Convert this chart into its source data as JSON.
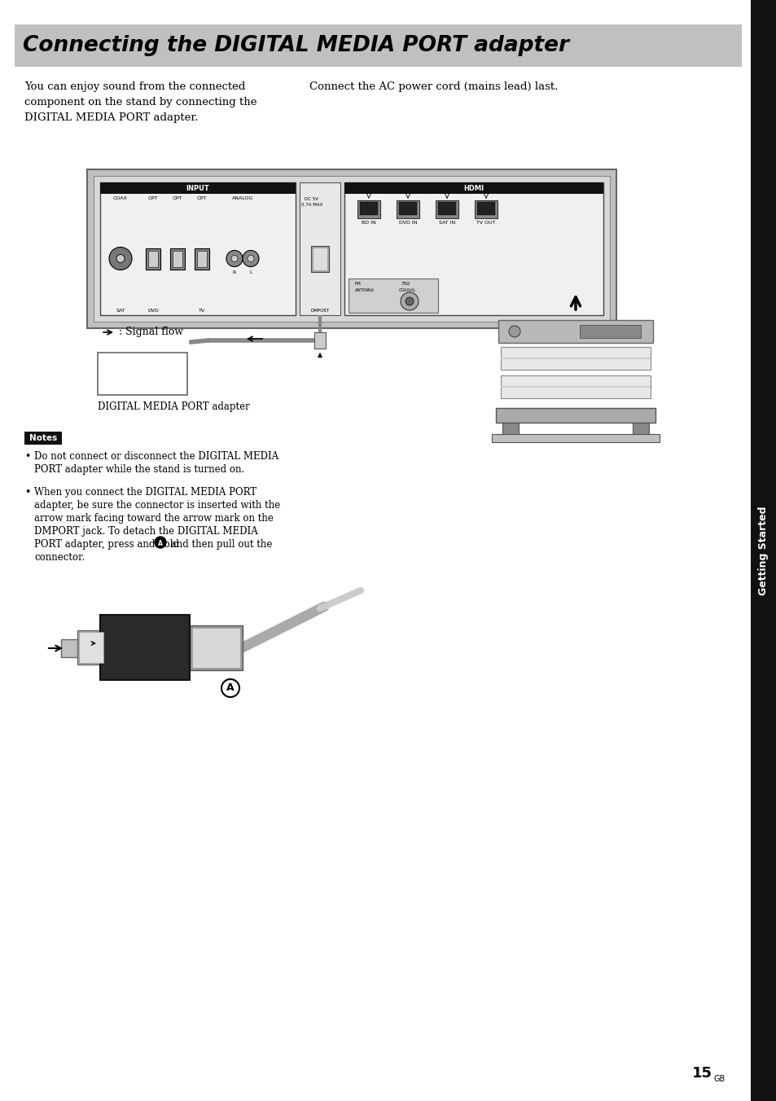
{
  "title": "Connecting the DIGITAL MEDIA PORT adapter",
  "title_bg": "#c0c0c0",
  "title_color": "#000000",
  "page_bg": "#ffffff",
  "sidebar_bg": "#111111",
  "sidebar_text": "Getting Started",
  "body_text_left": "You can enjoy sound from the connected\ncomponent on the stand by connecting the\nDIGITAL MEDIA PORT adapter.",
  "body_text_right": "Connect the AC power cord (mains lead) last.",
  "signal_flow_label": ": Signal flow",
  "dmport_label": "DIGITAL MEDIA PORT adapter",
  "notes_title": "Notes",
  "note1_line1": "Do not connect or disconnect the DIGITAL MEDIA",
  "note1_line2": "PORT adapter while the stand is turned on.",
  "note2_line1": "When you connect the DIGITAL MEDIA PORT",
  "note2_line2": "adapter, be sure the connector is inserted with the",
  "note2_line3": "arrow mark facing toward the arrow mark on the",
  "note2_line4": "DMPORT jack. To detach the DIGITAL MEDIA",
  "note2_line5": "PORT adapter, press and hold",
  "note2_line5b": " and then pull out the",
  "note2_line6": "connector.",
  "page_number": "15",
  "page_number_suffix": "GB"
}
